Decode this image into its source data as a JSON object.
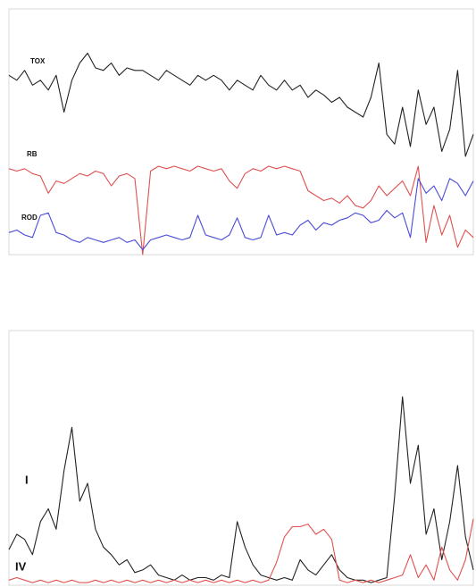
{
  "chart_data": [
    {
      "type": "line",
      "categories": [
        null,
        null,
        null,
        null,
        null,
        null,
        null,
        null,
        null,
        null,
        null,
        null,
        null,
        null,
        null,
        null,
        null,
        null,
        null,
        null,
        null,
        null,
        null,
        null,
        null,
        null,
        null,
        null,
        null,
        null,
        null,
        null,
        null,
        null,
        null,
        null,
        null,
        null,
        null,
        null,
        null,
        null,
        null,
        null,
        null,
        null,
        null,
        null,
        null,
        null,
        null,
        null,
        null,
        null,
        null,
        null,
        null,
        null,
        null,
        null
      ],
      "ylim": [
        0,
        100
      ],
      "series": [
        {
          "name": "TOX",
          "color": "#222222",
          "values": [
            73,
            71,
            75,
            69,
            71,
            67,
            73,
            58,
            71,
            78,
            82,
            76,
            75,
            78,
            73,
            76,
            75,
            75,
            73,
            71,
            75,
            73,
            71,
            69,
            73,
            71,
            73,
            71,
            67,
            71,
            69,
            67,
            73,
            69,
            67,
            71,
            67,
            69,
            64,
            67,
            65,
            62,
            64,
            60,
            58,
            56,
            64,
            78,
            49,
            45,
            60,
            44,
            67,
            53,
            60,
            42,
            51,
            75,
            40,
            49
          ]
        },
        {
          "name": "RB",
          "color": "#e05050",
          "values": [
            35,
            34,
            35,
            33,
            32,
            25,
            30,
            29,
            31,
            33,
            32,
            34,
            33,
            28,
            32,
            33,
            31,
            0,
            34,
            36,
            35,
            36,
            35,
            34,
            36,
            35,
            34,
            35,
            30,
            27,
            33,
            35,
            34,
            36,
            35,
            36,
            35,
            34,
            26,
            24,
            22,
            23,
            21,
            24,
            20,
            19,
            22,
            28,
            24,
            27,
            30,
            24,
            36,
            5,
            20,
            8,
            16,
            3,
            10,
            7
          ]
        },
        {
          "name": "ROD",
          "color": "#4a4ad8",
          "values": [
            9,
            10,
            8,
            7,
            16,
            17,
            9,
            8,
            6,
            5,
            7,
            6,
            5,
            6,
            7,
            5,
            6,
            2,
            6,
            7,
            8,
            7,
            6,
            7,
            16,
            8,
            7,
            6,
            8,
            15,
            7,
            6,
            7,
            16,
            8,
            9,
            8,
            12,
            14,
            10,
            13,
            12,
            14,
            15,
            17,
            16,
            13,
            14,
            18,
            15,
            17,
            7,
            31,
            25,
            28,
            22,
            31,
            29,
            24,
            30
          ]
        }
      ]
    },
    {
      "type": "line",
      "categories": [
        null,
        null,
        null,
        null,
        null,
        null,
        null,
        null,
        null,
        null,
        null,
        null,
        null,
        null,
        null,
        null,
        null,
        null,
        null,
        null,
        null,
        null,
        null,
        null,
        null,
        null,
        null,
        null,
        null,
        null,
        null,
        null,
        null,
        null,
        null,
        null,
        null,
        null,
        null,
        null,
        null,
        null,
        null,
        null,
        null,
        null,
        null,
        null,
        null,
        null,
        null,
        null,
        null,
        null,
        null,
        null,
        null,
        null,
        null,
        null
      ],
      "ylim": [
        0,
        100
      ],
      "series": [
        {
          "name": "I",
          "color": "#222222",
          "values": [
            14,
            20,
            18,
            12,
            25,
            30,
            22,
            45,
            62,
            33,
            40,
            22,
            15,
            12,
            8,
            10,
            5,
            6,
            8,
            4,
            3,
            2,
            4,
            2,
            3,
            3,
            2,
            4,
            3,
            25,
            15,
            8,
            4,
            3,
            2,
            3,
            2,
            10,
            6,
            4,
            8,
            12,
            6,
            3,
            2,
            2,
            1,
            2,
            3,
            35,
            74,
            40,
            55,
            20,
            30,
            10,
            25,
            47,
            19,
            6
          ]
        },
        {
          "name": "IV",
          "color": "#e05050",
          "values": [
            2,
            3,
            2,
            1,
            2,
            1,
            2,
            1,
            2,
            1,
            1,
            2,
            1,
            2,
            1,
            2,
            1,
            2,
            1,
            2,
            1,
            2,
            1,
            2,
            1,
            2,
            1,
            2,
            1,
            2,
            1,
            2,
            1,
            2,
            9,
            19,
            23,
            23,
            24,
            20,
            22,
            18,
            2,
            1,
            2,
            1,
            2,
            1,
            2,
            3,
            4,
            12,
            3,
            8,
            2,
            15,
            6,
            2,
            10,
            26
          ]
        }
      ]
    }
  ]
}
